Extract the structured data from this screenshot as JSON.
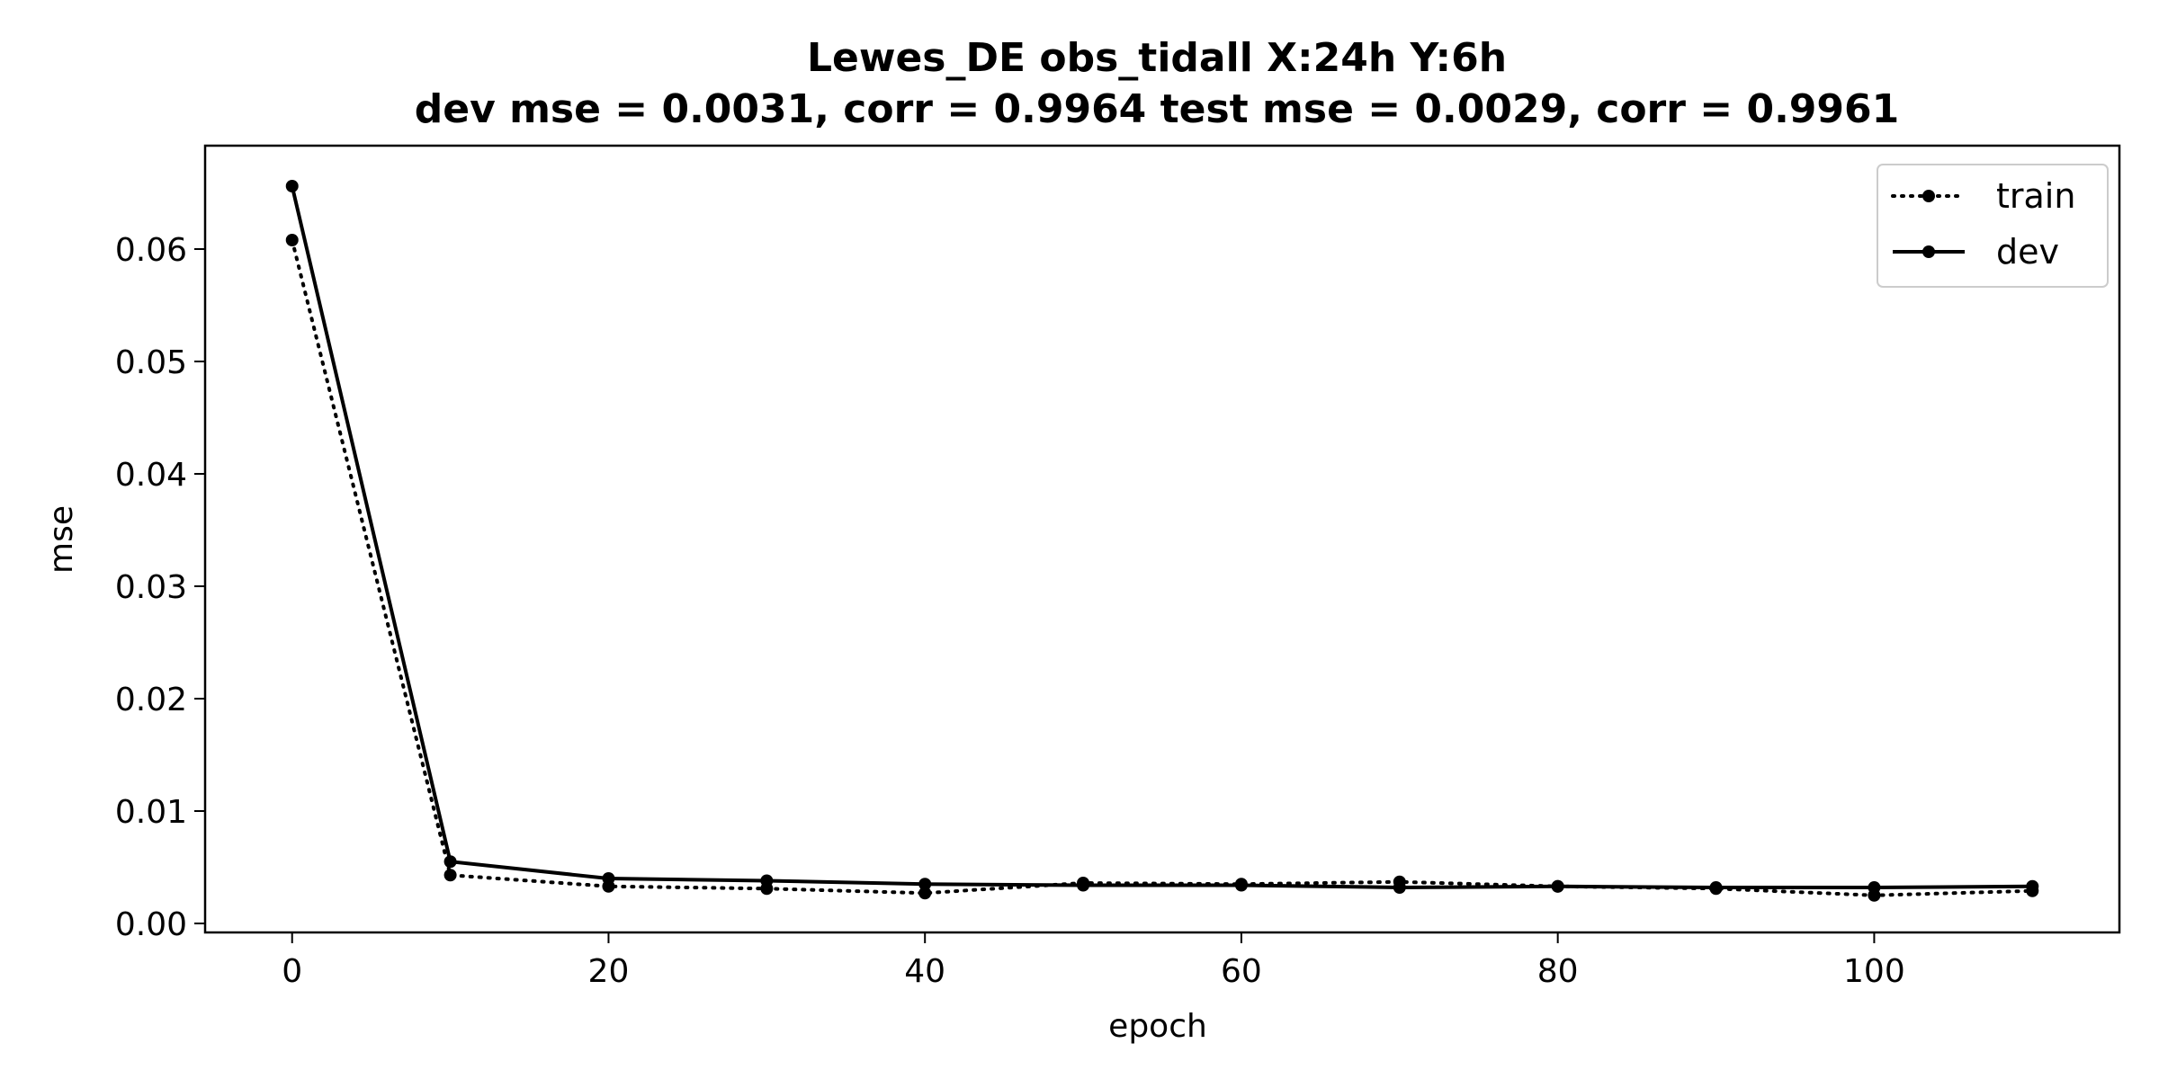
{
  "chart_data": {
    "type": "line",
    "title": "Lewes_DE   obs_tidall   X:24h   Y:6h",
    "subtitle": "dev mse = 0.0031, corr = 0.9964   test mse = 0.0029, corr = 0.9961",
    "xlabel": "epoch",
    "ylabel": "mse",
    "xlim": [
      -5.5,
      115.5
    ],
    "ylim": [
      -0.0008,
      0.0692
    ],
    "xticks": [
      0,
      20,
      40,
      60,
      80,
      100
    ],
    "xtick_labels": [
      "0",
      "20",
      "40",
      "60",
      "80",
      "100"
    ],
    "yticks": [
      0.0,
      0.01,
      0.02,
      0.03,
      0.04,
      0.05,
      0.06
    ],
    "ytick_labels": [
      "0.00",
      "0.01",
      "0.02",
      "0.03",
      "0.04",
      "0.05",
      "0.06"
    ],
    "grid": false,
    "legend_position": "top-right",
    "x": [
      0,
      10,
      20,
      30,
      40,
      50,
      60,
      70,
      80,
      90,
      100,
      110
    ],
    "series": [
      {
        "name": "train",
        "style": "dotted",
        "color": "#000000",
        "values": [
          0.0608,
          0.0043,
          0.0033,
          0.0031,
          0.0027,
          0.0036,
          0.0035,
          0.0037,
          0.0033,
          0.0031,
          0.0025,
          0.0029
        ]
      },
      {
        "name": "dev",
        "style": "solid",
        "color": "#000000",
        "values": [
          0.0656,
          0.0055,
          0.004,
          0.0038,
          0.0035,
          0.0034,
          0.0034,
          0.0032,
          0.0033,
          0.0032,
          0.0032,
          0.0033
        ]
      }
    ]
  }
}
